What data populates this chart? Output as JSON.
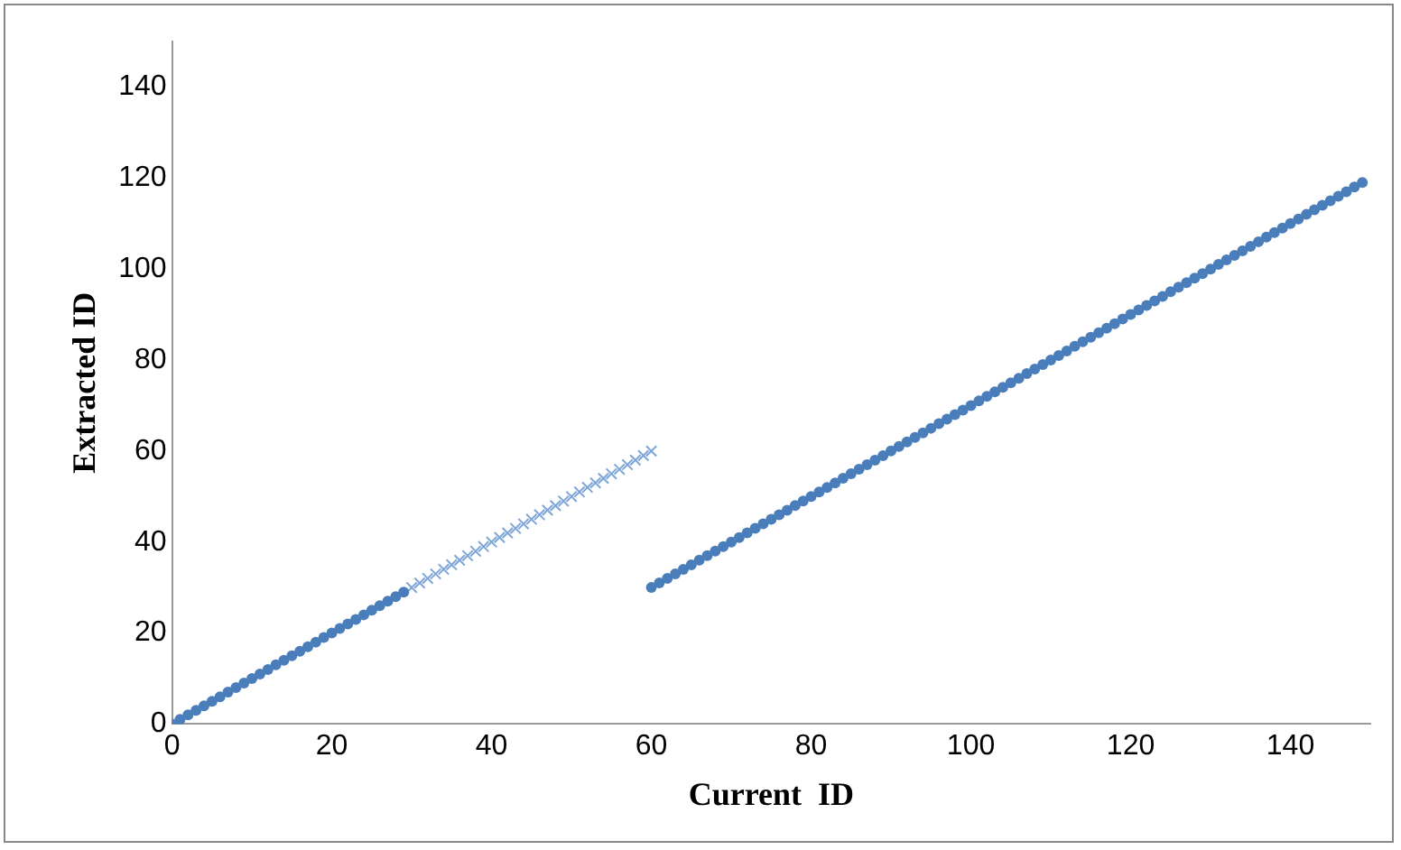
{
  "chart_data": {
    "type": "scatter",
    "xlabel": "Current  ID",
    "ylabel": "Extracted ID",
    "xlim": [
      0,
      150
    ],
    "ylim": [
      0,
      150
    ],
    "xticks": [
      0,
      20,
      40,
      60,
      80,
      100,
      120,
      140
    ],
    "yticks": [
      0,
      20,
      40,
      60,
      80,
      100,
      120,
      140
    ],
    "grid": false,
    "legend": false,
    "series": [
      {
        "color": "#4a7ebb",
        "marker": "circle",
        "x": [
          0,
          1,
          2,
          3,
          4,
          5,
          6,
          7,
          8,
          9,
          10,
          11,
          12,
          13,
          14,
          15,
          16,
          17,
          18,
          19,
          20,
          21,
          22,
          23,
          24,
          25,
          26,
          27,
          28,
          29
        ],
        "values": [
          0,
          1,
          2,
          3,
          4,
          5,
          6,
          7,
          8,
          9,
          10,
          11,
          12,
          13,
          14,
          15,
          16,
          17,
          18,
          19,
          20,
          21,
          22,
          23,
          24,
          25,
          26,
          27,
          28,
          29
        ]
      },
      {
        "color": "#7ea6d8",
        "marker": "cross",
        "x": [
          30,
          31,
          32,
          33,
          34,
          35,
          36,
          37,
          38,
          39,
          40,
          41,
          42,
          43,
          44,
          45,
          46,
          47,
          48,
          49,
          50,
          51,
          52,
          53,
          54,
          55,
          56,
          57,
          58,
          59,
          60
        ],
        "values": [
          30,
          31,
          32,
          33,
          34,
          35,
          36,
          37,
          38,
          39,
          40,
          41,
          42,
          43,
          44,
          45,
          46,
          47,
          48,
          49,
          50,
          51,
          52,
          53,
          54,
          55,
          56,
          57,
          58,
          59,
          60
        ]
      },
      {
        "color": "#4a7ebb",
        "marker": "circle",
        "x": [
          60,
          61,
          62,
          63,
          64,
          65,
          66,
          67,
          68,
          69,
          70,
          71,
          72,
          73,
          74,
          75,
          76,
          77,
          78,
          79,
          80,
          81,
          82,
          83,
          84,
          85,
          86,
          87,
          88,
          89,
          90,
          91,
          92,
          93,
          94,
          95,
          96,
          97,
          98,
          99,
          100,
          101,
          102,
          103,
          104,
          105,
          106,
          107,
          108,
          109,
          110,
          111,
          112,
          113,
          114,
          115,
          116,
          117,
          118,
          119,
          120,
          121,
          122,
          123,
          124,
          125,
          126,
          127,
          128,
          129,
          130,
          131,
          132,
          133,
          134,
          135,
          136,
          137,
          138,
          139,
          140,
          141,
          142,
          143,
          144,
          145,
          146,
          147,
          148,
          149
        ],
        "values": [
          30,
          31,
          32,
          33,
          34,
          35,
          36,
          37,
          38,
          39,
          40,
          41,
          42,
          43,
          44,
          45,
          46,
          47,
          48,
          49,
          50,
          51,
          52,
          53,
          54,
          55,
          56,
          57,
          58,
          59,
          60,
          61,
          62,
          63,
          64,
          65,
          66,
          67,
          68,
          69,
          70,
          71,
          72,
          73,
          74,
          75,
          76,
          77,
          78,
          79,
          80,
          81,
          82,
          83,
          84,
          85,
          86,
          87,
          88,
          89,
          90,
          91,
          92,
          93,
          94,
          95,
          96,
          97,
          98,
          99,
          100,
          101,
          102,
          103,
          104,
          105,
          106,
          107,
          108,
          109,
          110,
          111,
          112,
          113,
          114,
          115,
          116,
          117,
          118,
          119
        ]
      }
    ]
  }
}
